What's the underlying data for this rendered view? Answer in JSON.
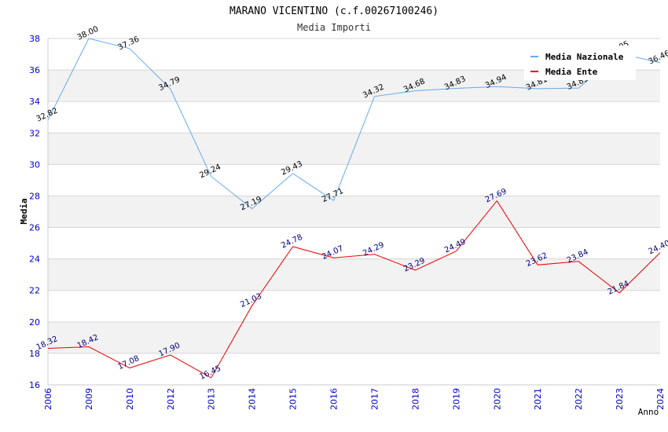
{
  "chart_data": {
    "type": "line",
    "title": "MARANO VICENTINO (c.f.00267100246)",
    "subtitle": "Media Importi",
    "xlabel": "Anno",
    "ylabel": "Media",
    "ylim": [
      16,
      38
    ],
    "yticks": [
      16,
      18,
      20,
      22,
      24,
      26,
      28,
      30,
      32,
      34,
      36,
      38
    ],
    "categories": [
      "2006",
      "2009",
      "2010",
      "2012",
      "2013",
      "2014",
      "2015",
      "2016",
      "2017",
      "2018",
      "2019",
      "2020",
      "2021",
      "2022",
      "2023",
      "2024"
    ],
    "series": [
      {
        "name": "Media Nazionale",
        "color": "#66aaee",
        "values": [
          32.82,
          38.0,
          37.36,
          34.79,
          29.24,
          27.19,
          29.43,
          27.71,
          34.32,
          34.68,
          34.83,
          34.94,
          34.81,
          34.85,
          37.05,
          36.46
        ],
        "labels": [
          "32.82",
          "38.00",
          "37.36",
          "34.79",
          "29.24",
          "27.19",
          "29.43",
          "27.71",
          "34.32",
          "34.68",
          "34.83",
          "34.94",
          "34.81",
          "34.85",
          "37.05",
          "36.46"
        ]
      },
      {
        "name": "Media Ente",
        "color": "#ee0000",
        "values": [
          18.32,
          18.42,
          17.08,
          17.9,
          16.45,
          21.03,
          24.78,
          24.07,
          24.29,
          23.29,
          24.49,
          27.69,
          23.62,
          23.84,
          21.84,
          24.4
        ],
        "labels": [
          "18.32",
          "18.42",
          "17.08",
          "17.90",
          "16.45",
          "21.03",
          "24.78",
          "24.07",
          "24.29",
          "23.29",
          "24.49",
          "27.69",
          "23.62",
          "23.84",
          "21.84",
          "24.40"
        ]
      }
    ],
    "grid": true,
    "legend": "top-right"
  }
}
